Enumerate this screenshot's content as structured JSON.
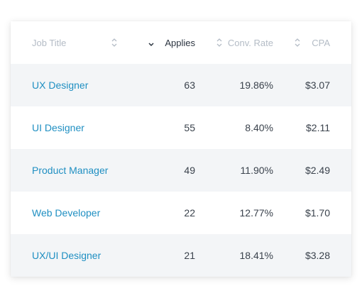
{
  "table": {
    "columns": [
      {
        "key": "title",
        "label": "Job Title"
      },
      {
        "key": "applies",
        "label": "Applies"
      },
      {
        "key": "conv",
        "label": "Conv. Rate"
      },
      {
        "key": "cpa",
        "label": "CPA"
      }
    ],
    "rows": [
      {
        "title": "UX Designer",
        "applies": "63",
        "conv": "19.86%",
        "cpa": "$3.07"
      },
      {
        "title": "UI Designer",
        "applies": "55",
        "conv": "8.40%",
        "cpa": "$2.11"
      },
      {
        "title": "Product Manager",
        "applies": "49",
        "conv": "11.90%",
        "cpa": "$2.49"
      },
      {
        "title": "Web Developer",
        "applies": "22",
        "conv": "12.77%",
        "cpa": "$1.70"
      },
      {
        "title": "UX/UI Designer",
        "applies": "21",
        "conv": "18.41%",
        "cpa": "$3.28"
      }
    ]
  },
  "icons": {
    "sort_unsorted": "chevron-up-down-icon",
    "sort_descending": "chevron-down-icon"
  },
  "colors": {
    "link": "#1f8fc2",
    "stripe": "#f3f5f7",
    "header_muted": "#b4bcc6",
    "header_active": "#2b3440"
  }
}
